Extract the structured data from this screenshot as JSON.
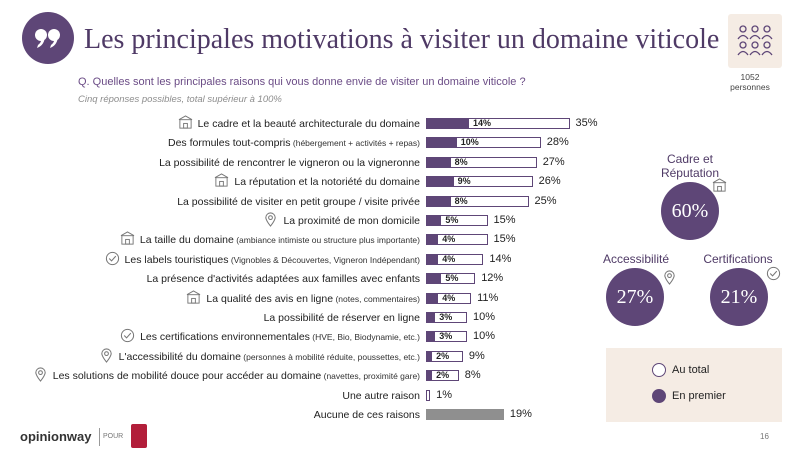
{
  "title": "Les principales motivations à visiter un domaine viticole",
  "question": "Q. Quelles sont les principales raisons qui vous donne envie de visiter un domaine viticole ?",
  "subnote": "Cinq réponses possibles, total supérieur à 100%",
  "sample": {
    "n": "1052",
    "unit": "personnes"
  },
  "chart_data": {
    "type": "bar",
    "orientation": "horizontal",
    "categories": [
      "Le cadre et la beauté architecturale du domaine",
      "Des formules tout-compris",
      "La possibilité de rencontrer le vigneron ou la vigneronne",
      "La réputation et la notoriété du domaine",
      "La possibilité de visiter en petit groupe / visite privée",
      "La proximité de mon domicile",
      "La taille du domaine",
      "Les labels touristiques",
      "La présence d'activités adaptées aux familles avec enfants",
      "La qualité des avis en ligne",
      "La possibilité de réserver en ligne",
      "Les certifications environnementales",
      "L'accessibilité du domaine",
      "Les solutions de mobilité douce pour accéder au domaine",
      "Une autre raison",
      "Aucune de ces raisons"
    ],
    "category_details": [
      "",
      "(hébergement + activités + repas)",
      "",
      "",
      "",
      "",
      "(ambiance intimiste ou structure plus importante)",
      "(Vignobles & Découvertes, Vigneron Indépendant)",
      "",
      "(notes, commentaires)",
      "",
      "(HVE, Bio, Biodynamie, etc.)",
      "(personnes à mobilité réduite, poussettes, etc.)",
      "(navettes, proximité gare)",
      "",
      ""
    ],
    "category_icons": [
      "building-icon",
      "",
      "",
      "building-icon",
      "",
      "location-pin-icon",
      "building-icon",
      "check-circle-icon",
      "",
      "building-icon",
      "",
      "check-circle-icon",
      "location-pin-icon",
      "location-pin-icon",
      "",
      ""
    ],
    "series": [
      {
        "name": "Au total",
        "values": [
          35,
          28,
          27,
          26,
          25,
          15,
          15,
          14,
          12,
          11,
          10,
          10,
          9,
          8,
          1,
          19
        ]
      },
      {
        "name": "En premier",
        "values": [
          14,
          10,
          8,
          9,
          8,
          5,
          4,
          4,
          5,
          4,
          3,
          3,
          2,
          2,
          null,
          null
        ]
      }
    ],
    "value_suffix": "%",
    "legend_position": "bottom-right",
    "grid": false
  },
  "summary": [
    {
      "label": "Cadre et Réputation",
      "value": "60%",
      "icon": "building-icon"
    },
    {
      "label": "Accessibilité",
      "value": "27%",
      "icon": "location-pin-icon"
    },
    {
      "label": "Certifications",
      "value": "21%",
      "icon": "check-circle-icon"
    }
  ],
  "legend": {
    "total_label": "Au total",
    "first_label": "En premier"
  },
  "footer": {
    "brand": "opinionway",
    "pour": "POUR",
    "page": "16"
  },
  "colors": {
    "accent": "#5e4677",
    "neutral_bar": "#8f8f8f",
    "panel": "#f5ece4"
  }
}
